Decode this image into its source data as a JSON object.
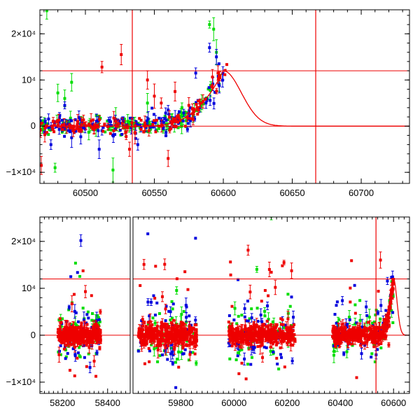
{
  "chart_data": [
    {
      "type": "scatter",
      "panel": "top",
      "x_ticks": [
        60500,
        60550,
        60600,
        60650,
        60700
      ],
      "y_ticks": [
        {
          "value": -10000,
          "label": "−1×10⁴"
        },
        {
          "value": 0,
          "label": "0"
        },
        {
          "value": 10000,
          "label": "10⁴"
        },
        {
          "value": 20000,
          "label": "2×10⁴"
        }
      ],
      "xlim": [
        60467,
        60735
      ],
      "ylim": [
        -12400,
        25200
      ],
      "grid": false,
      "colors": {
        "band_a": "#00dd00",
        "band_b": "#0000dd",
        "band_c": "#ee0000",
        "model": "#ee0000"
      },
      "reference_lines": {
        "horizontal": [
          0,
          12000
        ],
        "vertical": [
          60534,
          60667
        ]
      },
      "model_curve": {
        "peak_x": 60600,
        "peak_y": 12000,
        "rise_start_x": 60540,
        "decay_tau_days": 13
      },
      "series": [
        {
          "color_key": "band_a",
          "x_range": [
            60467,
            60598
          ],
          "baseline_spread": 900,
          "outliers": [
            [
              60472,
              25000
            ],
            [
              60480,
              7200
            ],
            [
              60485,
              6000
            ],
            [
              60490,
              9500
            ],
            [
              60478,
              -9000
            ],
            [
              60520,
              -9500
            ],
            [
              60522,
              1500
            ],
            [
              60545,
              5000
            ],
            [
              60570,
              4000
            ],
            [
              60590,
              22000
            ],
            [
              60593,
              21000
            ],
            [
              60595,
              16000
            ]
          ]
        },
        {
          "color_key": "band_b",
          "x_range": [
            60467,
            60600
          ],
          "baseline_spread": 1100,
          "outliers": [
            [
              60475,
              -4000
            ],
            [
              60485,
              4500
            ],
            [
              60490,
              -2500
            ],
            [
              60510,
              -5000
            ],
            [
              60538,
              -4000
            ],
            [
              60560,
              3500
            ],
            [
              60580,
              11500
            ],
            [
              60590,
              17000
            ],
            [
              60595,
              15000
            ]
          ]
        },
        {
          "color_key": "band_c",
          "x_range": [
            60467,
            60603
          ],
          "baseline_spread": 800,
          "outliers": [
            [
              60468,
              -8500
            ],
            [
              60512,
              12800
            ],
            [
              60526,
              15500
            ],
            [
              60532,
              -5000
            ],
            [
              60536,
              -1500
            ],
            [
              60545,
              10000
            ],
            [
              60550,
              6500
            ],
            [
              60555,
              5000
            ],
            [
              60560,
              -7000
            ],
            [
              60565,
              7500
            ],
            [
              60575,
              4500
            ]
          ]
        }
      ]
    },
    {
      "type": "scatter",
      "panel": "bottom",
      "x_ticks": [
        58200,
        58400,
        59800,
        60000,
        60200,
        60400,
        60600
      ],
      "y_ticks": [
        {
          "value": -10000,
          "label": "−1×10⁴"
        },
        {
          "value": 0,
          "label": "0"
        },
        {
          "value": 10000,
          "label": "10⁴"
        },
        {
          "value": 20000,
          "label": "2×10⁴"
        }
      ],
      "broken_axis": true,
      "segments": [
        {
          "xlim": [
            58100,
            58500
          ]
        },
        {
          "xlim": [
            59620,
            60660
          ]
        }
      ],
      "ylim": [
        -12400,
        25200
      ],
      "grid": false,
      "colors": {
        "band_a": "#00dd00",
        "band_b": "#0000dd",
        "band_c": "#ee0000",
        "model": "#ee0000"
      },
      "reference_lines": {
        "horizontal": [
          0,
          12000
        ],
        "vertical": [
          60534
        ]
      },
      "model_curve": {
        "peak_x": 60600,
        "peak_y": 12000,
        "rise_start_x": 60540,
        "decay_tau_days": 13
      },
      "seasons": [
        {
          "x_range": [
            58180,
            58370
          ],
          "spread": 1800
        },
        {
          "x_range": [
            59640,
            59860
          ],
          "spread": 2500
        },
        {
          "x_range": [
            59980,
            60230
          ],
          "spread": 2200
        },
        {
          "x_range": [
            60370,
            60600
          ],
          "spread": 2000
        }
      ]
    }
  ]
}
